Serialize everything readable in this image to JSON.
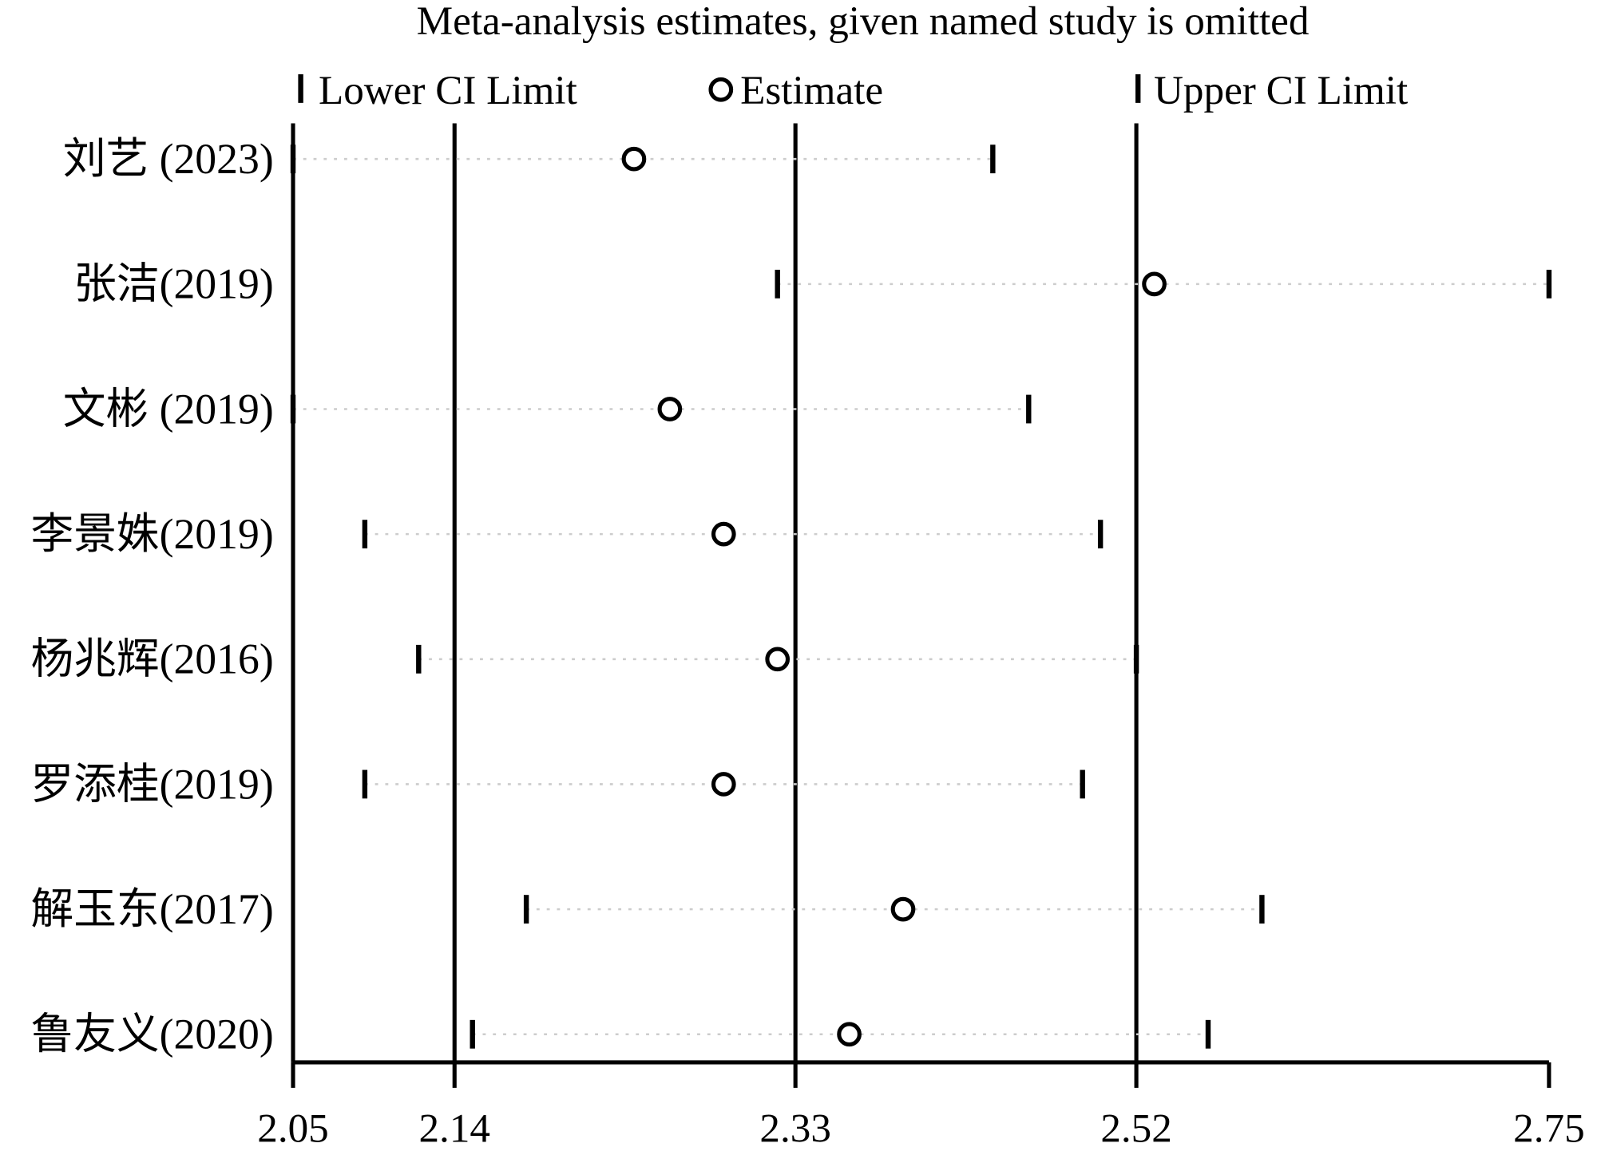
{
  "chart_data": {
    "type": "scatter",
    "title": "Meta-analysis estimates, given named study is omitted",
    "legend": {
      "placement": "top",
      "entries": [
        "Lower CI Limit",
        "Estimate",
        "Upper CI Limit"
      ]
    },
    "xlim": [
      2.05,
      2.75
    ],
    "x_ticks": [
      2.05,
      2.14,
      2.33,
      2.52,
      2.75
    ],
    "x_tick_labels": [
      "2.05",
      "2.14",
      "2.33",
      "2.52",
      "2.75"
    ],
    "reference_lines": [
      2.14,
      2.33,
      2.52
    ],
    "studies": [
      {
        "label": "刘艺 (2023)",
        "lower": 2.05,
        "estimate": 2.24,
        "upper": 2.44
      },
      {
        "label": "张洁(2019)",
        "lower": 2.32,
        "estimate": 2.53,
        "upper": 2.75
      },
      {
        "label": "文彬 (2019)",
        "lower": 2.05,
        "estimate": 2.26,
        "upper": 2.46
      },
      {
        "label": "李景姝(2019)",
        "lower": 2.09,
        "estimate": 2.29,
        "upper": 2.5
      },
      {
        "label": "杨兆辉(2016)",
        "lower": 2.12,
        "estimate": 2.32,
        "upper": 2.52
      },
      {
        "label": "罗添桂(2019)",
        "lower": 2.09,
        "estimate": 2.29,
        "upper": 2.49
      },
      {
        "label": "解玉东(2017)",
        "lower": 2.18,
        "estimate": 2.39,
        "upper": 2.59
      },
      {
        "label": "鲁友义(2020)",
        "lower": 2.15,
        "estimate": 2.36,
        "upper": 2.56
      }
    ]
  }
}
